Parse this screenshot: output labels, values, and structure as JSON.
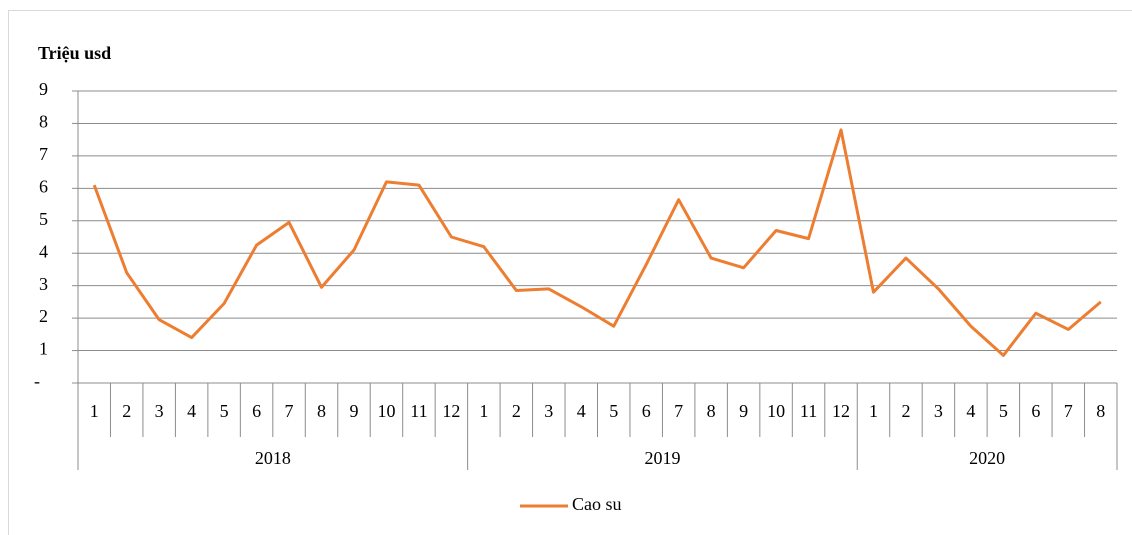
{
  "chart_data": {
    "type": "line",
    "y_axis_label": "Triệu usd",
    "categories": [
      "1",
      "2",
      "3",
      "4",
      "5",
      "6",
      "7",
      "8",
      "9",
      "10",
      "11",
      "12",
      "1",
      "2",
      "3",
      "4",
      "5",
      "6",
      "7",
      "8",
      "9",
      "10",
      "11",
      "12",
      "1",
      "2",
      "3",
      "4",
      "5",
      "6",
      "7",
      "8"
    ],
    "category_group": [
      "2018",
      "2018",
      "2018",
      "2018",
      "2018",
      "2018",
      "2018",
      "2018",
      "2018",
      "2018",
      "2018",
      "2018",
      "2019",
      "2019",
      "2019",
      "2019",
      "2019",
      "2019",
      "2019",
      "2019",
      "2019",
      "2019",
      "2019",
      "2019",
      "2020",
      "2020",
      "2020",
      "2020",
      "2020",
      "2020",
      "2020",
      "2020"
    ],
    "series": [
      {
        "name": "Cao su",
        "color": "#ed7d31",
        "values": [
          6.1,
          3.4,
          1.95,
          1.4,
          2.45,
          4.25,
          4.95,
          2.95,
          4.1,
          6.2,
          6.1,
          4.5,
          4.2,
          2.85,
          2.9,
          2.35,
          1.75,
          3.65,
          5.65,
          3.85,
          3.55,
          4.7,
          4.45,
          7.8,
          2.8,
          3.85,
          2.9,
          1.75,
          0.85,
          2.15,
          1.65,
          2.5
        ]
      }
    ],
    "ylim": [
      0,
      9
    ],
    "yticks": [
      {
        "value": 0,
        "label": "-"
      },
      1,
      2,
      3,
      4,
      5,
      6,
      7,
      8,
      9
    ],
    "grid": true,
    "legend": "bottom"
  }
}
